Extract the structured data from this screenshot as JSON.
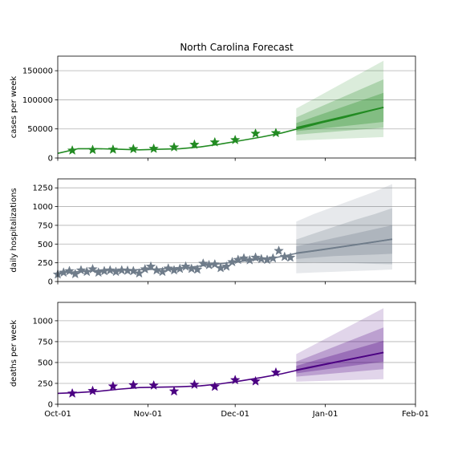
{
  "figure": {
    "title": "North Carolina Forecast"
  },
  "chart_data": [
    {
      "type": "line",
      "panel": "cases",
      "ylabel": "cases per week",
      "ylim": [
        0,
        175000
      ],
      "yticks": [
        0,
        50000,
        100000,
        150000
      ],
      "xlim": [
        "2020-10-01",
        "2021-02-01"
      ],
      "xticks": [
        "Oct-01",
        "Nov-01",
        "Dec-01",
        "Jan-01",
        "Feb-01"
      ],
      "grid": "y",
      "color": "#228b22",
      "fit": {
        "x": [
          "2020-10-01",
          "2020-10-08",
          "2020-10-15",
          "2020-10-22",
          "2020-10-29",
          "2020-11-05",
          "2020-11-12",
          "2020-11-19",
          "2020-11-26",
          "2020-12-03",
          "2020-12-10",
          "2020-12-17",
          "2020-12-24",
          "2020-12-31",
          "2021-01-07",
          "2021-01-14",
          "2021-01-21"
        ],
        "y": [
          8000,
          16000,
          16000,
          15000,
          14000,
          15000,
          16000,
          19000,
          24000,
          30000,
          36000,
          43000,
          52000,
          61000,
          69000,
          78000,
          87000
        ]
      },
      "observed": {
        "x": [
          "2020-10-06",
          "2020-10-13",
          "2020-10-20",
          "2020-10-27",
          "2020-11-03",
          "2020-11-10",
          "2020-11-17",
          "2020-11-24",
          "2020-12-01",
          "2020-12-08",
          "2020-12-15"
        ],
        "y": [
          13000,
          14000,
          14500,
          15500,
          16000,
          18500,
          23000,
          27000,
          31000,
          42000,
          43000
        ]
      },
      "forecast": {
        "x": [
          "2020-12-22",
          "2021-01-21"
        ],
        "median": [
          52000,
          87000
        ],
        "bands": [
          {
            "lower": [
              46000,
              62000
            ],
            "upper": [
              60000,
              112000
            ]
          },
          {
            "lower": [
              40000,
              52000
            ],
            "upper": [
              70000,
              135000
            ]
          },
          {
            "lower": [
              30000,
              36000
            ],
            "upper": [
              85000,
              167000
            ]
          }
        ]
      }
    },
    {
      "type": "line",
      "panel": "hospitalizations",
      "ylabel": "daily hospitalizations",
      "ylim": [
        0,
        1370
      ],
      "yticks": [
        0,
        250,
        500,
        750,
        1000,
        1250
      ],
      "xlim": [
        "2020-10-01",
        "2021-02-01"
      ],
      "xticks": [
        "Oct-01",
        "Nov-01",
        "Dec-01",
        "Jan-01",
        "Feb-01"
      ],
      "grid": "y",
      "color": "#6f7c8a",
      "fit": {
        "x": [
          "2020-10-01",
          "2020-10-15",
          "2020-11-01",
          "2020-11-15",
          "2020-12-01",
          "2020-12-15",
          "2020-12-22",
          "2021-01-01",
          "2021-01-15",
          "2021-01-24"
        ],
        "y": [
          115,
          150,
          160,
          190,
          260,
          320,
          375,
          430,
          510,
          565
        ]
      },
      "observed": {
        "x": [
          "2020-10-01",
          "2020-10-03",
          "2020-10-05",
          "2020-10-07",
          "2020-10-09",
          "2020-10-11",
          "2020-10-13",
          "2020-10-15",
          "2020-10-17",
          "2020-10-19",
          "2020-10-21",
          "2020-10-23",
          "2020-10-25",
          "2020-10-27",
          "2020-10-29",
          "2020-10-31",
          "2020-11-02",
          "2020-11-04",
          "2020-11-06",
          "2020-11-08",
          "2020-11-10",
          "2020-11-12",
          "2020-11-14",
          "2020-11-16",
          "2020-11-18",
          "2020-11-20",
          "2020-11-22",
          "2020-11-24",
          "2020-11-26",
          "2020-11-28",
          "2020-11-30",
          "2020-12-02",
          "2020-12-04",
          "2020-12-06",
          "2020-12-08",
          "2020-12-10",
          "2020-12-12",
          "2020-12-14",
          "2020-12-16",
          "2020-12-18",
          "2020-12-20"
        ],
        "y": [
          95,
          120,
          140,
          100,
          150,
          130,
          165,
          120,
          140,
          150,
          130,
          150,
          145,
          140,
          110,
          165,
          200,
          150,
          130,
          175,
          150,
          170,
          200,
          170,
          160,
          240,
          220,
          230,
          180,
          200,
          260,
          290,
          310,
          285,
          320,
          300,
          290,
          310,
          410,
          330,
          320
        ]
      },
      "forecast": {
        "x": [
          "2020-12-22",
          "2020-12-28",
          "2021-01-04",
          "2021-01-11",
          "2021-01-18",
          "2021-01-24"
        ],
        "median": [
          380,
          410,
          450,
          490,
          530,
          565
        ],
        "bands": [
          {
            "lower": [
              300,
              320,
              340,
              350,
              360,
              370
            ],
            "upper": [
              470,
              520,
              580,
              640,
              700,
              750
            ]
          },
          {
            "lower": [
              250,
              255,
              250,
              245,
              235,
              230
            ],
            "upper": [
              560,
              640,
              730,
              820,
              900,
              980
            ]
          },
          {
            "lower": [
              110,
              120,
              130,
              140,
              150,
              160
            ],
            "upper": [
              800,
              900,
              1000,
              1100,
              1200,
              1300
            ]
          }
        ]
      }
    },
    {
      "type": "line",
      "panel": "deaths",
      "ylabel": "deaths per week",
      "ylim": [
        0,
        1220
      ],
      "yticks": [
        0,
        250,
        500,
        750,
        1000
      ],
      "xlim": [
        "2020-10-01",
        "2021-02-01"
      ],
      "xticks": [
        "Oct-01",
        "Nov-01",
        "Dec-01",
        "Jan-01",
        "Feb-01"
      ],
      "grid": "y",
      "color": "#4b0082",
      "fit": {
        "x": [
          "2020-10-01",
          "2020-10-08",
          "2020-10-15",
          "2020-10-22",
          "2020-10-29",
          "2020-11-05",
          "2020-11-12",
          "2020-11-19",
          "2020-11-26",
          "2020-12-03",
          "2020-12-10",
          "2020-12-17",
          "2020-12-24",
          "2020-12-31",
          "2021-01-07",
          "2021-01-14",
          "2021-01-21"
        ],
        "y": [
          130,
          140,
          155,
          180,
          200,
          205,
          210,
          220,
          245,
          280,
          320,
          365,
          420,
          470,
          520,
          570,
          620
        ]
      },
      "observed": {
        "x": [
          "2020-10-06",
          "2020-10-13",
          "2020-10-20",
          "2020-10-27",
          "2020-11-03",
          "2020-11-10",
          "2020-11-17",
          "2020-11-24",
          "2020-12-01",
          "2020-12-08",
          "2020-12-15"
        ],
        "y": [
          130,
          160,
          215,
          230,
          225,
          155,
          235,
          210,
          290,
          275,
          380
        ]
      },
      "forecast": {
        "x": [
          "2020-12-22",
          "2021-01-21"
        ],
        "median": [
          410,
          620
        ],
        "bands": [
          {
            "lower": [
              370,
              510
            ],
            "upper": [
              460,
              760
            ]
          },
          {
            "lower": [
              330,
              420
            ],
            "upper": [
              510,
              920
            ]
          },
          {
            "lower": [
              270,
              300
            ],
            "upper": [
              600,
              1150
            ]
          }
        ]
      }
    }
  ]
}
